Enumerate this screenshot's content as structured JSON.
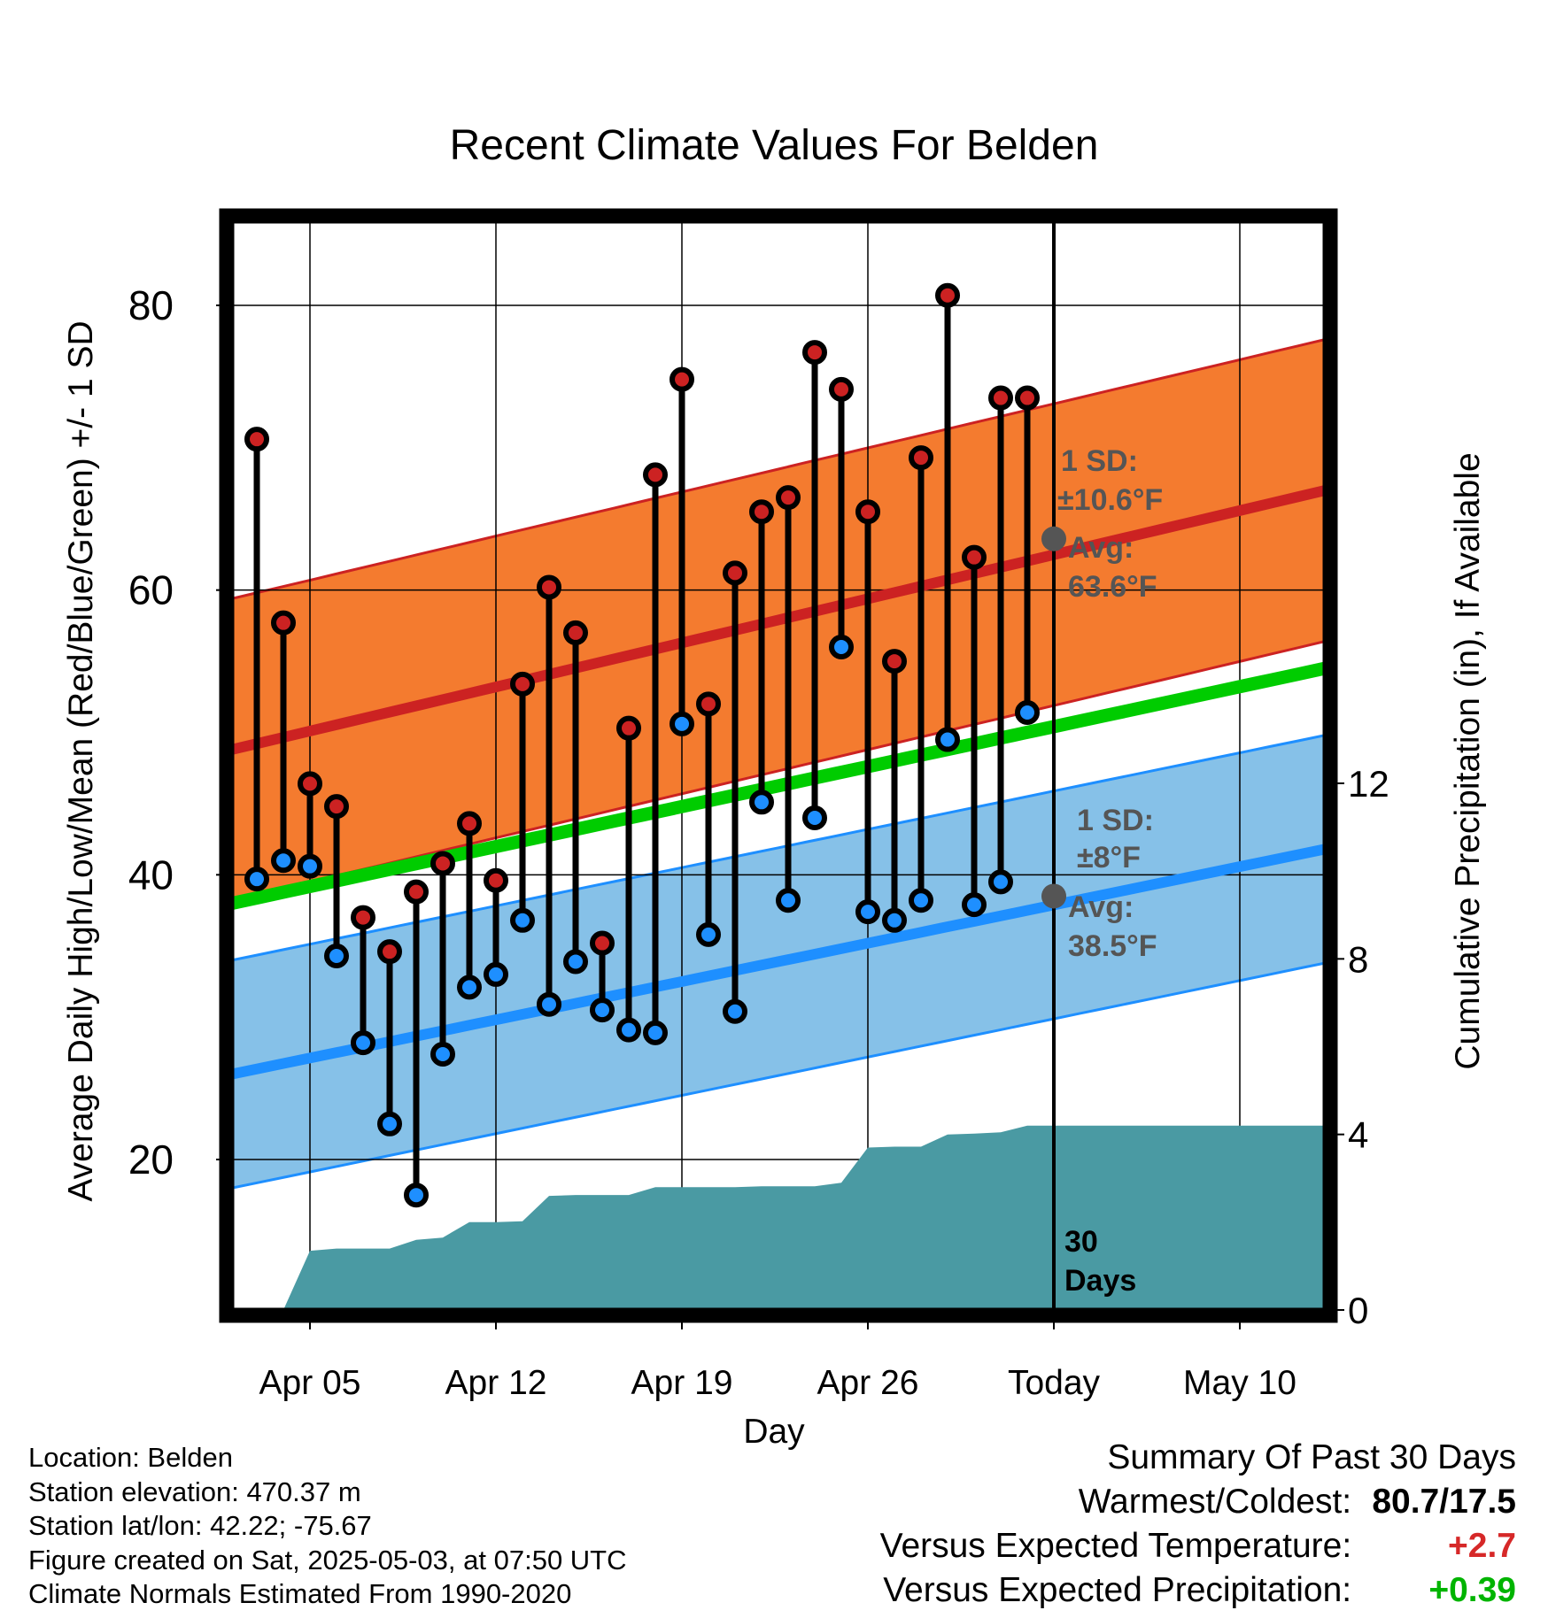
{
  "chart_data": {
    "type": "line",
    "title": "Recent Climate Values For Belden",
    "xlabel": "Day",
    "ylabel": "Average Daily High/Low/Mean (Red/Blue/Green) +/- 1 SD",
    "y2label": "Cumulative Precipitation (in), If Available",
    "ylim": [
      10,
      85
    ],
    "y2lim": [
      0,
      25
    ],
    "y_ticks": [
      20,
      40,
      60,
      80
    ],
    "y2_ticks": [
      0,
      4,
      8,
      12
    ],
    "x_tick_labels": [
      "Apr 05",
      "Apr 12",
      "Apr 19",
      "Apr 26",
      "Today",
      "May 10"
    ],
    "x_tick_days": [
      2,
      9,
      16,
      23,
      30,
      37
    ],
    "days": [
      0,
      1,
      2,
      3,
      4,
      5,
      6,
      7,
      8,
      9,
      10,
      11,
      12,
      13,
      14,
      15,
      16,
      17,
      18,
      19,
      20,
      21,
      22,
      23,
      24,
      25,
      26,
      27,
      28,
      29
    ],
    "daily_high": [
      70.6,
      57.7,
      46.4,
      44.8,
      37.0,
      34.6,
      38.8,
      40.8,
      43.6,
      39.6,
      53.4,
      60.2,
      57.0,
      35.2,
      50.3,
      68.1,
      74.8,
      52.0,
      61.2,
      65.5,
      66.5,
      76.7,
      74.1,
      65.5,
      55.0,
      69.3,
      80.7,
      62.3,
      73.5,
      73.5
    ],
    "daily_low": [
      39.7,
      41.0,
      40.6,
      34.3,
      28.2,
      22.5,
      17.5,
      27.4,
      32.1,
      33.0,
      36.8,
      30.9,
      33.9,
      30.5,
      29.1,
      28.9,
      50.6,
      35.8,
      30.4,
      45.1,
      38.2,
      44.0,
      56.0,
      37.4,
      36.8,
      38.2,
      49.5,
      37.9,
      39.5,
      51.4
    ],
    "normal_high": {
      "start": 48.8,
      "end": 67.0
    },
    "normal_high_sd": 10.6,
    "normal_low": {
      "start": 26.0,
      "end": 41.8
    },
    "normal_low_sd": 8.0,
    "normal_mean": {
      "start": 38.0,
      "end": 54.5
    },
    "cumulative_precip": [
      0,
      0,
      1.35,
      1.4,
      1.4,
      1.4,
      1.6,
      1.65,
      2.0,
      2.0,
      2.02,
      2.6,
      2.62,
      2.62,
      2.62,
      2.8,
      2.8,
      2.8,
      2.8,
      2.82,
      2.82,
      2.82,
      2.9,
      3.7,
      3.72,
      3.72,
      4.0,
      4.02,
      4.05,
      4.2,
      4.2
    ],
    "today_day": 30,
    "annotations": {
      "high_sd": "1 SD:",
      "high_sd_value": "±10.6°F",
      "high_avg": "Avg:",
      "high_avg_value": "63.6°F",
      "low_sd": "1 SD:",
      "low_sd_value": "±8°F",
      "low_avg": "Avg:",
      "low_avg_value": "38.5°F",
      "window_number": "30",
      "window_unit": "Days"
    },
    "today_avg_high": 63.6,
    "today_avg_low": 38.5,
    "grid": true,
    "colors": {
      "high_band": "#f47b2f",
      "high_line": "#cc2222",
      "low_band": "#86c1e8",
      "low_line": "#1e8fff",
      "mean_line": "#00cc00",
      "precip_fill": "#4a9aa3",
      "high_marker": "#cc2222",
      "low_marker": "#1e8fff",
      "avg_marker": "#555555"
    }
  },
  "station_info": {
    "location": "Location: Belden",
    "elevation": "Station elevation: 470.37 m",
    "latlon": "Station lat/lon: 42.22; -75.67",
    "created": "Figure created on Sat, 2025-05-03, at 07:50 UTC",
    "normals": "Climate Normals Estimated From 1990-2020"
  },
  "summary": {
    "title": "Summary Of Past 30 Days",
    "warm_cold_label": "Warmest/Coldest:",
    "warm_cold_value": "80.7/17.5",
    "temp_label": "Versus Expected Temperature:",
    "temp_value": "+2.7",
    "precip_label": "Versus Expected Precipitation:",
    "precip_value": "+0.39"
  }
}
